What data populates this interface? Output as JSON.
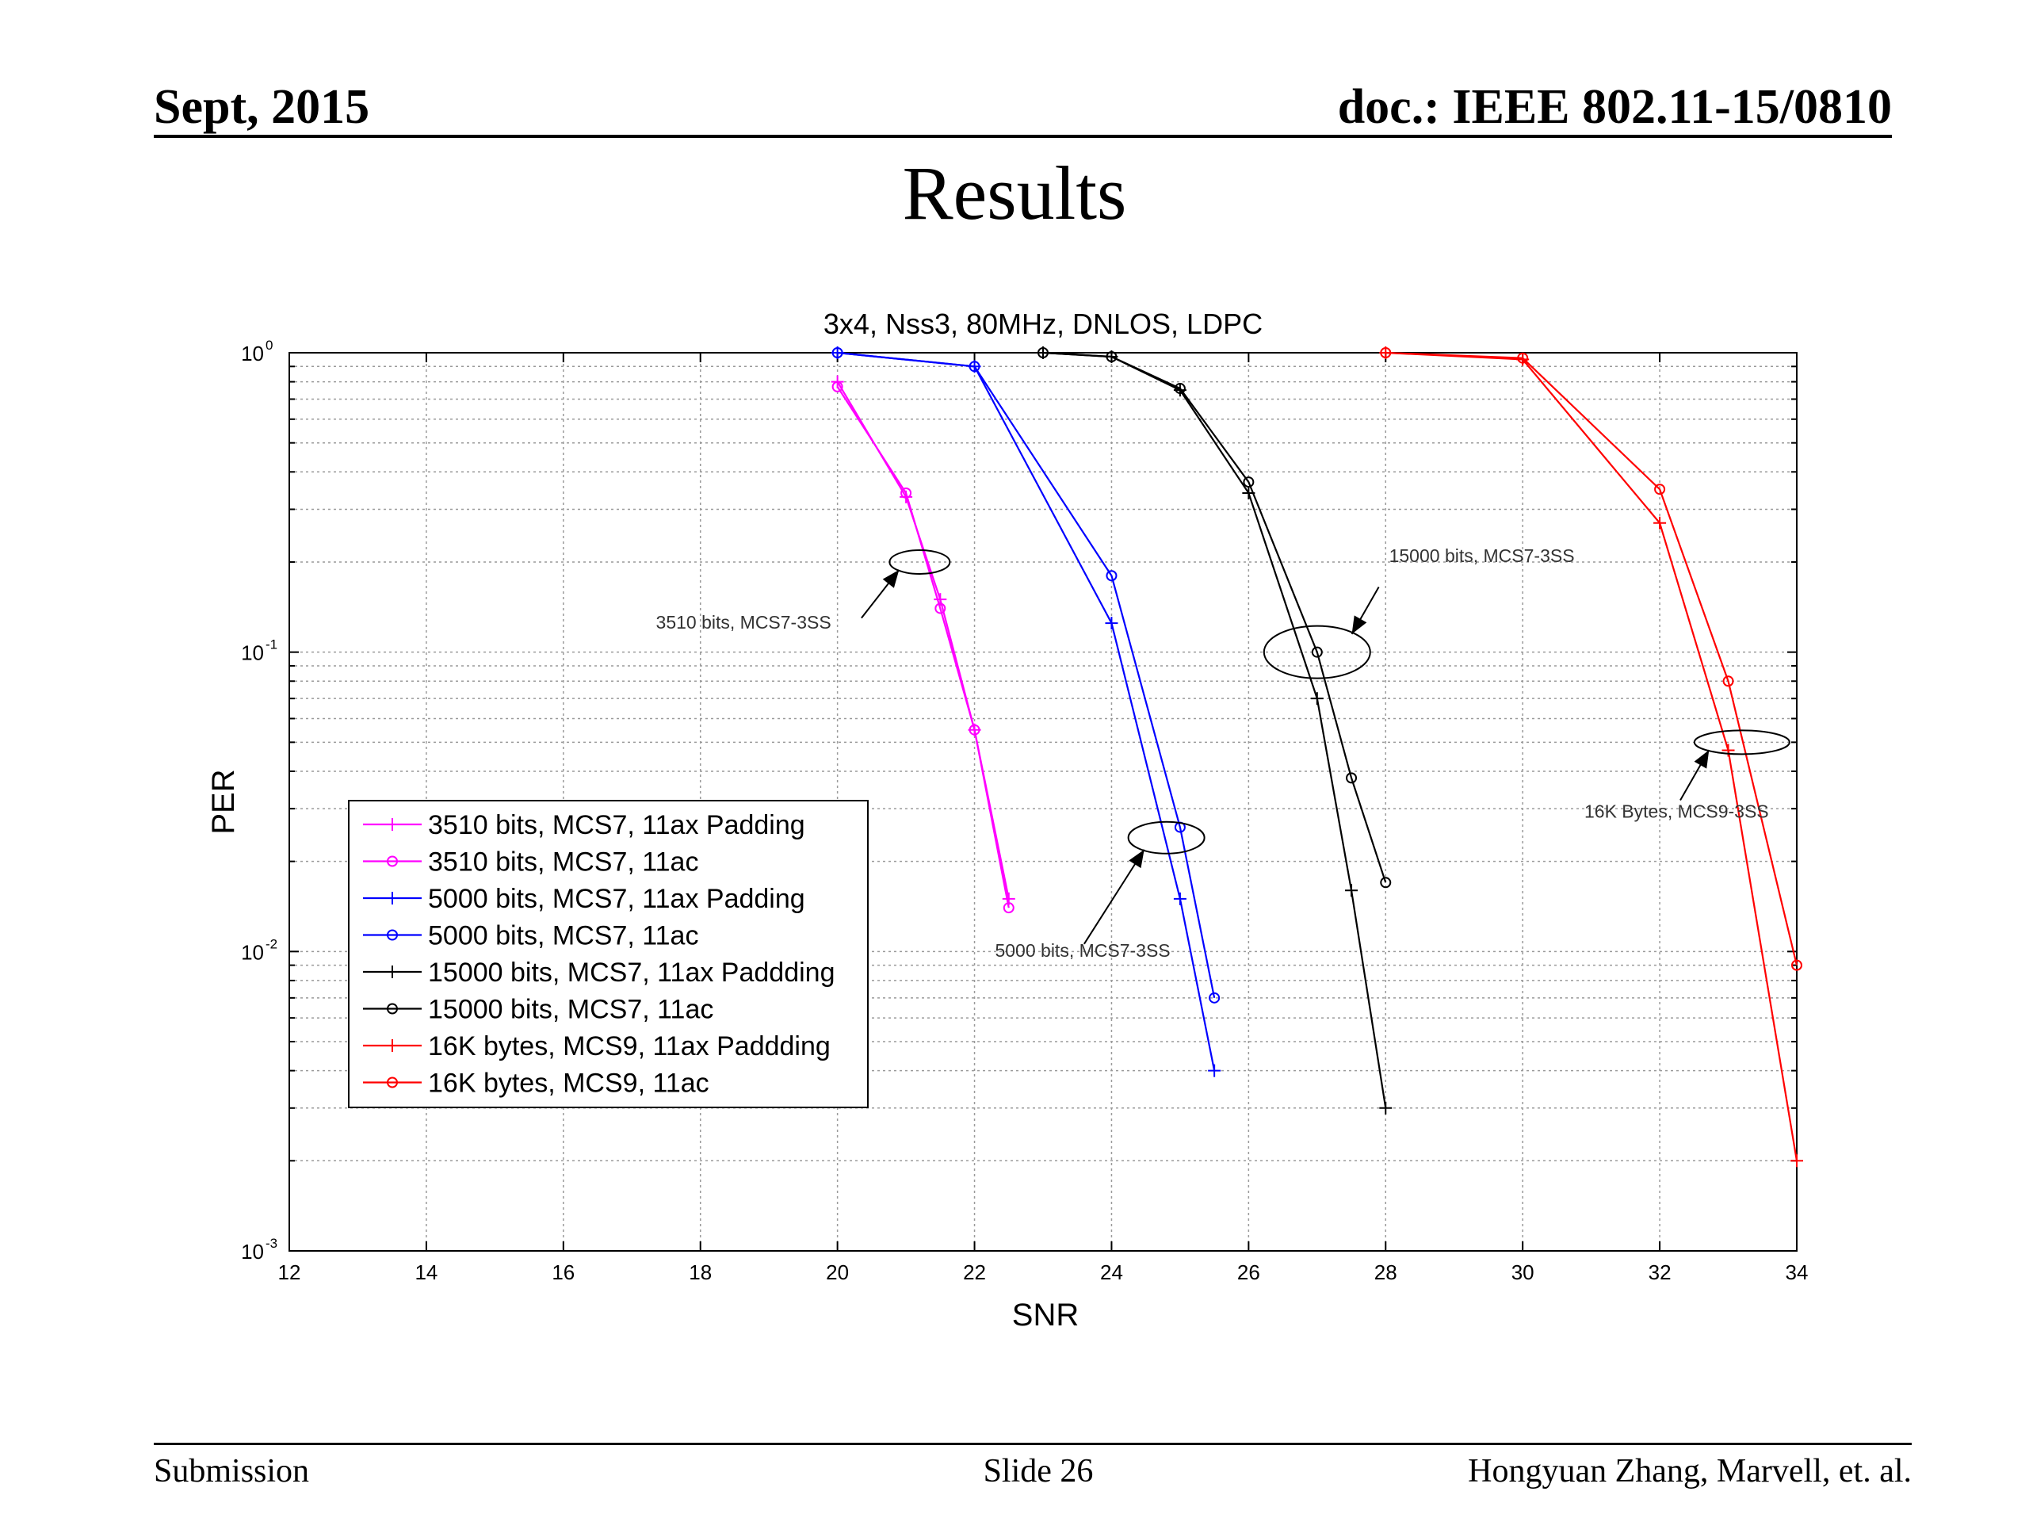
{
  "header": {
    "date": "Sept, 2015",
    "doc": "doc.: IEEE 802.11-15/0810"
  },
  "slide": {
    "title": "Results"
  },
  "footer": {
    "left": "Submission",
    "center": "Slide 26",
    "right": "Hongyuan Zhang,  Marvell, et. al."
  },
  "chart_data": {
    "type": "line",
    "title": "3x4, Nss3, 80MHz, DNLOS, LDPC",
    "xlabel": "SNR",
    "ylabel": "PER",
    "xlim": [
      12,
      34
    ],
    "ylim": [
      0.001,
      1
    ],
    "yscale": "log",
    "grid": true,
    "legend_position": "lower-left",
    "xticks": [
      12,
      14,
      16,
      18,
      20,
      22,
      24,
      26,
      28,
      30,
      32,
      34
    ],
    "yticks": [
      {
        "value": 1,
        "base": "10",
        "exp": "0"
      },
      {
        "value": 0.1,
        "base": "10",
        "exp": "-1"
      },
      {
        "value": 0.01,
        "base": "10",
        "exp": "-2"
      },
      {
        "value": 0.001,
        "base": "10",
        "exp": "-3"
      }
    ],
    "series": [
      {
        "name": "3510 bits, MCS7, 11ax Padding",
        "color": "#ff00ff",
        "marker": "plus",
        "x": [
          20,
          21,
          21.5,
          22,
          22.5
        ],
        "y": [
          0.8,
          0.33,
          0.15,
          0.055,
          0.015
        ]
      },
      {
        "name": "3510 bits, MCS7, 11ac",
        "color": "#ff00ff",
        "marker": "circle",
        "x": [
          20,
          21,
          21.5,
          22,
          22.5
        ],
        "y": [
          0.77,
          0.34,
          0.14,
          0.055,
          0.014
        ]
      },
      {
        "name": "5000 bits, MCS7, 11ax Padding",
        "color": "#0000ff",
        "marker": "plus",
        "x": [
          20,
          22,
          24,
          25,
          25.5
        ],
        "y": [
          1.0,
          0.9,
          0.125,
          0.015,
          0.004
        ]
      },
      {
        "name": "5000 bits, MCS7, 11ac",
        "color": "#0000ff",
        "marker": "circle",
        "x": [
          20,
          22,
          24,
          25,
          25.5
        ],
        "y": [
          1.0,
          0.9,
          0.18,
          0.026,
          0.007
        ]
      },
      {
        "name": "15000 bits, MCS7, 11ax Paddding",
        "color": "#000000",
        "marker": "plus",
        "x": [
          23,
          24,
          25,
          26,
          27,
          27.5,
          28
        ],
        "y": [
          1.0,
          0.97,
          0.75,
          0.34,
          0.07,
          0.016,
          0.003
        ]
      },
      {
        "name": "15000 bits, MCS7, 11ac",
        "color": "#000000",
        "marker": "circle",
        "x": [
          23,
          24,
          25,
          26,
          27,
          27.5,
          28
        ],
        "y": [
          1.0,
          0.97,
          0.76,
          0.37,
          0.1,
          0.038,
          0.017
        ]
      },
      {
        "name": "16K bytes, MCS9, 11ax Paddding",
        "color": "#ff0000",
        "marker": "plus",
        "x": [
          28,
          30,
          32,
          33,
          34
        ],
        "y": [
          1.0,
          0.95,
          0.27,
          0.047,
          0.002
        ]
      },
      {
        "name": "16K bytes, MCS9, 11ac",
        "color": "#ff0000",
        "marker": "circle",
        "x": [
          28,
          30,
          32,
          33,
          34
        ],
        "y": [
          1.0,
          0.96,
          0.35,
          0.08,
          0.009
        ]
      }
    ],
    "annotations": [
      {
        "text": "3510 bits, MCS7-3SS",
        "ellipse": {
          "x": 21.2,
          "y": 0.2
        },
        "label": {
          "x": 17.35,
          "y": 0.12
        },
        "arrow_tail": {
          "x": 20.35,
          "y": 0.13
        }
      },
      {
        "text": "5000 bits, MCS7-3SS",
        "ellipse": {
          "x": 24.8,
          "y": 0.024
        },
        "label": {
          "x": 22.3,
          "y": 0.0096
        },
        "arrow_tail": {
          "x": 23.6,
          "y": 0.0106
        }
      },
      {
        "text": "15000 bits, MCS7-3SS",
        "ellipse": {
          "x": 27.0,
          "y": 0.1
        },
        "label": {
          "x": 28.05,
          "y": 0.2
        },
        "arrow_tail": {
          "x": 27.9,
          "y": 0.165
        }
      },
      {
        "text": "16K Bytes, MCS9-3SS",
        "ellipse": {
          "x": 33.2,
          "y": 0.05
        },
        "label": {
          "x": 30.9,
          "y": 0.028
        },
        "arrow_tail": {
          "x": 32.3,
          "y": 0.032
        }
      }
    ]
  }
}
